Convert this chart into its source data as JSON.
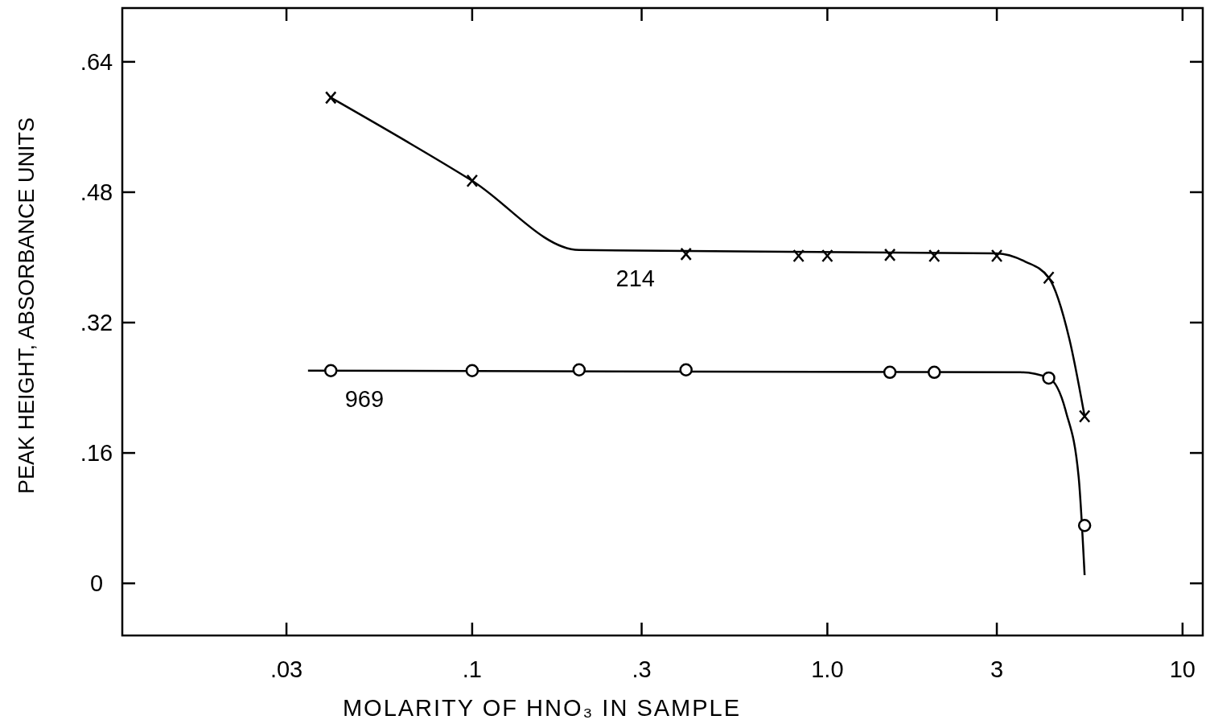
{
  "chart_data": {
    "type": "scatter",
    "xlabel": "MOLARITY OF HNO₃ IN SAMPLE",
    "ylabel": "PEAK HEIGHT, ABSORBANCE UNITS",
    "log": "x",
    "xlim": [
      0.01035,
      11.4
    ],
    "ylim": [
      -0.064,
      0.706
    ],
    "xticks": [
      {
        "value": 0.03,
        "label": ".03"
      },
      {
        "value": 0.1,
        "label": ".1"
      },
      {
        "value": 0.3,
        "label": ".3"
      },
      {
        "value": 1,
        "label": "1.0"
      },
      3,
      10
    ],
    "yticks": [
      0,
      {
        "value": 0.16,
        "label": ".16"
      },
      {
        "value": 0.32,
        "label": ".32"
      },
      {
        "value": 0.48,
        "label": ".48"
      },
      {
        "value": 0.64,
        "label": ".64"
      }
    ],
    "series": [
      {
        "type": "line",
        "name": "214",
        "marker": "none",
        "color": "#000000",
        "x": [
          0.04,
          0.1,
          0.2,
          3.0,
          3.6,
          4.2,
          4.8,
          5.3
        ],
        "values": [
          0.596,
          0.494,
          0.409,
          0.405,
          0.395,
          0.375,
          0.3,
          0.205
        ]
      },
      {
        "type": "line",
        "name": "969",
        "marker": "none",
        "color": "#000000",
        "x": [
          0.0345,
          3.5,
          4.2,
          4.7,
          5.1,
          5.3
        ],
        "values": [
          0.261,
          0.259,
          0.252,
          0.21,
          0.13,
          0.01
        ]
      },
      {
        "marker": "cross",
        "color": "#000000",
        "x": [
          0.04,
          0.1,
          0.4,
          0.83,
          1.0,
          1.5,
          2.0,
          3.0,
          4.2,
          5.3
        ],
        "values": [
          0.596,
          0.494,
          0.404,
          0.402,
          0.402,
          0.403,
          0.402,
          0.402,
          0.375,
          0.205
        ]
      },
      {
        "marker": "circle",
        "color": "#000000",
        "x": [
          0.04,
          0.1,
          0.2,
          0.4,
          1.5,
          2.0,
          4.2,
          5.3
        ],
        "values": [
          0.261,
          0.261,
          0.262,
          0.262,
          0.259,
          0.259,
          0.252,
          0.071
        ]
      }
    ]
  }
}
